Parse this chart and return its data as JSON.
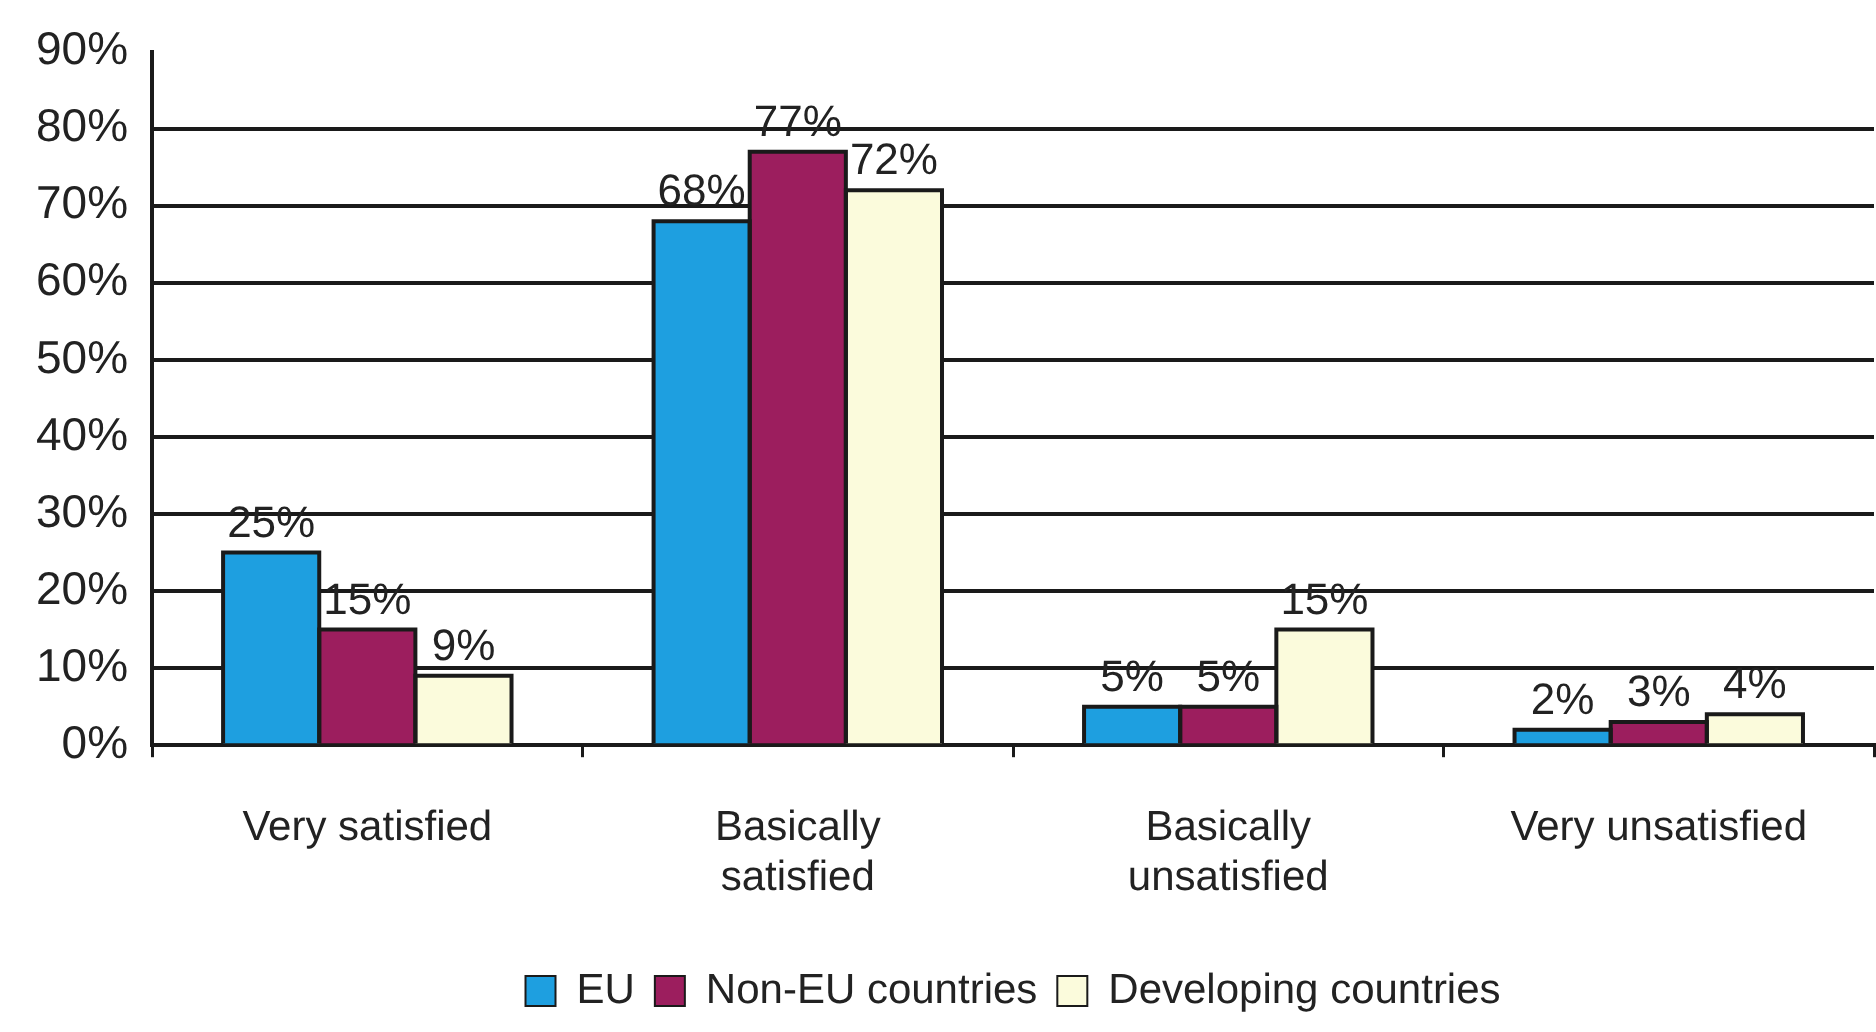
{
  "chart_data": {
    "type": "bar",
    "categories": [
      "Very satisfied",
      "Basically satisfied",
      "Basically unsatisfied",
      "Very unsatisfied"
    ],
    "series": [
      {
        "name": "EU",
        "color": "#1e9fe0",
        "values": [
          25,
          68,
          5,
          2
        ],
        "value_labels": [
          "25%",
          "68%",
          "5%",
          "2%"
        ]
      },
      {
        "name": "Non-EU countries",
        "color": "#9c1e5e",
        "values": [
          15,
          77,
          5,
          3
        ],
        "value_labels": [
          "15%",
          "77%",
          "5%",
          "3%"
        ]
      },
      {
        "name": "Developing countries",
        "color": "#fbfbdc",
        "values": [
          9,
          72,
          15,
          4
        ],
        "value_labels": [
          "9%",
          "72%",
          "15%",
          "4%"
        ]
      }
    ],
    "ylim": [
      0,
      90
    ],
    "yticks": [
      {
        "value": 0,
        "label": "0%"
      },
      {
        "value": 10,
        "label": "10%"
      },
      {
        "value": 20,
        "label": "20%"
      },
      {
        "value": 30,
        "label": "30%"
      },
      {
        "value": 40,
        "label": "40%"
      },
      {
        "value": 50,
        "label": "50%"
      },
      {
        "value": 60,
        "label": "60%"
      },
      {
        "value": 70,
        "label": "70%"
      },
      {
        "value": 80,
        "label": "80%"
      },
      {
        "value": 90,
        "label": "90%"
      }
    ],
    "grid": "y",
    "legend": "bottom"
  }
}
